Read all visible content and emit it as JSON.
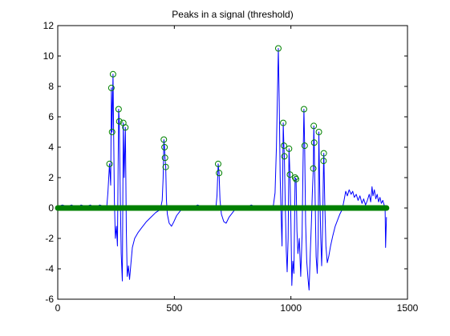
{
  "chart_data": {
    "type": "line",
    "title": "Peaks in a signal (threshold)",
    "xlabel": "",
    "ylabel": "",
    "xlim": [
      0,
      1500
    ],
    "ylim": [
      -6,
      12
    ],
    "xticks": [
      "0",
      "500",
      "1000",
      "1500"
    ],
    "yticks": [
      "-6",
      "-4",
      "-2",
      "0",
      "2",
      "4",
      "6",
      "8",
      "10",
      "12"
    ],
    "grid": false,
    "legend": "none",
    "colors": {
      "signal": "#0000ff",
      "peaks": "#008000",
      "baseline": "#008000"
    },
    "baseline": {
      "y": 0,
      "x": [
        0,
        1410
      ]
    },
    "peaks": [
      {
        "x": 222,
        "y": 2.9
      },
      {
        "x": 230,
        "y": 7.9
      },
      {
        "x": 233,
        "y": 5.0
      },
      {
        "x": 237,
        "y": 8.8
      },
      {
        "x": 261,
        "y": 6.5
      },
      {
        "x": 264,
        "y": 5.7
      },
      {
        "x": 281,
        "y": 5.6
      },
      {
        "x": 290,
        "y": 5.3
      },
      {
        "x": 455,
        "y": 4.5
      },
      {
        "x": 458,
        "y": 4.0
      },
      {
        "x": 460,
        "y": 3.3
      },
      {
        "x": 463,
        "y": 2.7
      },
      {
        "x": 688,
        "y": 2.9
      },
      {
        "x": 692,
        "y": 2.3
      },
      {
        "x": 946,
        "y": 10.5
      },
      {
        "x": 967,
        "y": 5.6
      },
      {
        "x": 970,
        "y": 4.1
      },
      {
        "x": 972,
        "y": 3.4
      },
      {
        "x": 992,
        "y": 3.9
      },
      {
        "x": 996,
        "y": 2.2
      },
      {
        "x": 1018,
        "y": 2.0
      },
      {
        "x": 1022,
        "y": 1.9
      },
      {
        "x": 1056,
        "y": 6.5
      },
      {
        "x": 1059,
        "y": 4.1
      },
      {
        "x": 1098,
        "y": 5.4
      },
      {
        "x": 1100,
        "y": 4.3
      },
      {
        "x": 1096,
        "y": 2.6
      },
      {
        "x": 1120,
        "y": 5.0
      },
      {
        "x": 1141,
        "y": 3.6
      },
      {
        "x": 1140,
        "y": 3.1
      }
    ],
    "signal": [
      [
        0,
        0.1
      ],
      [
        20,
        0.2
      ],
      [
        40,
        0.1
      ],
      [
        60,
        0.2
      ],
      [
        80,
        0.0
      ],
      [
        100,
        0.2
      ],
      [
        120,
        0.1
      ],
      [
        140,
        0.2
      ],
      [
        160,
        0.0
      ],
      [
        180,
        0.2
      ],
      [
        200,
        0.1
      ],
      [
        210,
        0.0
      ],
      [
        215,
        1.0
      ],
      [
        222,
        2.9
      ],
      [
        227,
        1.5
      ],
      [
        230,
        7.9
      ],
      [
        233,
        5.0
      ],
      [
        237,
        8.8
      ],
      [
        243,
        0.5
      ],
      [
        247,
        -2.0
      ],
      [
        252,
        -1.2
      ],
      [
        256,
        -2.5
      ],
      [
        261,
        6.5
      ],
      [
        264,
        5.7
      ],
      [
        268,
        1.0
      ],
      [
        272,
        -3.0
      ],
      [
        277,
        -4.8
      ],
      [
        281,
        5.6
      ],
      [
        285,
        2.0
      ],
      [
        290,
        5.3
      ],
      [
        294,
        -1.5
      ],
      [
        298,
        -4.5
      ],
      [
        303,
        -3.8
      ],
      [
        308,
        -4.7
      ],
      [
        314,
        -3.6
      ],
      [
        320,
        -2.6
      ],
      [
        330,
        -2.0
      ],
      [
        345,
        -1.6
      ],
      [
        360,
        -1.3
      ],
      [
        380,
        -0.9
      ],
      [
        400,
        -0.6
      ],
      [
        420,
        -0.3
      ],
      [
        440,
        -0.1
      ],
      [
        448,
        0.5
      ],
      [
        452,
        2.0
      ],
      [
        455,
        4.5
      ],
      [
        458,
        4.0
      ],
      [
        460,
        3.3
      ],
      [
        463,
        2.7
      ],
      [
        466,
        0.5
      ],
      [
        470,
        -0.4
      ],
      [
        478,
        -1.0
      ],
      [
        488,
        -1.2
      ],
      [
        498,
        -0.9
      ],
      [
        510,
        -0.5
      ],
      [
        525,
        -0.2
      ],
      [
        545,
        0.1
      ],
      [
        570,
        0.0
      ],
      [
        600,
        0.2
      ],
      [
        630,
        0.0
      ],
      [
        660,
        0.1
      ],
      [
        678,
        0.0
      ],
      [
        683,
        0.8
      ],
      [
        688,
        2.9
      ],
      [
        692,
        2.3
      ],
      [
        696,
        0.5
      ],
      [
        702,
        -0.4
      ],
      [
        712,
        -0.9
      ],
      [
        722,
        -1.0
      ],
      [
        735,
        -0.6
      ],
      [
        750,
        -0.3
      ],
      [
        770,
        0.1
      ],
      [
        800,
        0.0
      ],
      [
        830,
        0.2
      ],
      [
        860,
        0.0
      ],
      [
        890,
        0.1
      ],
      [
        915,
        0.0
      ],
      [
        925,
        0.2
      ],
      [
        932,
        1.0
      ],
      [
        938,
        4.0
      ],
      [
        943,
        8.0
      ],
      [
        946,
        10.5
      ],
      [
        950,
        7.0
      ],
      [
        954,
        2.0
      ],
      [
        958,
        -0.5
      ],
      [
        962,
        -2.5
      ],
      [
        967,
        5.6
      ],
      [
        970,
        4.1
      ],
      [
        972,
        3.4
      ],
      [
        976,
        0.0
      ],
      [
        980,
        -2.8
      ],
      [
        984,
        -4.2
      ],
      [
        988,
        -2.0
      ],
      [
        992,
        3.9
      ],
      [
        996,
        2.2
      ],
      [
        1000,
        -1.0
      ],
      [
        1004,
        -5.1
      ],
      [
        1008,
        -3.5
      ],
      [
        1013,
        -4.3
      ],
      [
        1018,
        2.0
      ],
      [
        1022,
        1.9
      ],
      [
        1026,
        -1.5
      ],
      [
        1030,
        -3.0
      ],
      [
        1036,
        -2.0
      ],
      [
        1042,
        -4.5
      ],
      [
        1048,
        -1.8
      ],
      [
        1052,
        3.0
      ],
      [
        1056,
        6.5
      ],
      [
        1059,
        4.1
      ],
      [
        1063,
        -1.0
      ],
      [
        1068,
        -3.5
      ],
      [
        1073,
        -4.6
      ],
      [
        1078,
        -5.4
      ],
      [
        1083,
        -3.0
      ],
      [
        1088,
        -1.0
      ],
      [
        1092,
        1.0
      ],
      [
        1096,
        2.6
      ],
      [
        1098,
        5.4
      ],
      [
        1100,
        4.3
      ],
      [
        1104,
        0.5
      ],
      [
        1108,
        -3.2
      ],
      [
        1113,
        -4.3
      ],
      [
        1117,
        -2.0
      ],
      [
        1120,
        5.0
      ],
      [
        1124,
        1.0
      ],
      [
        1128,
        -2.0
      ],
      [
        1132,
        -3.8
      ],
      [
        1136,
        -1.2
      ],
      [
        1140,
        3.1
      ],
      [
        1141,
        3.6
      ],
      [
        1145,
        0.5
      ],
      [
        1150,
        -2.5
      ],
      [
        1156,
        -3.6
      ],
      [
        1162,
        -3.2
      ],
      [
        1170,
        -2.5
      ],
      [
        1180,
        -1.8
      ],
      [
        1190,
        -1.2
      ],
      [
        1200,
        -0.8
      ],
      [
        1210,
        -0.4
      ],
      [
        1220,
        -0.1
      ],
      [
        1228,
        0.5
      ],
      [
        1235,
        1.1
      ],
      [
        1242,
        0.8
      ],
      [
        1250,
        1.2
      ],
      [
        1258,
        0.9
      ],
      [
        1265,
        1.1
      ],
      [
        1272,
        0.7
      ],
      [
        1280,
        0.9
      ],
      [
        1288,
        0.5
      ],
      [
        1296,
        0.8
      ],
      [
        1305,
        0.3
      ],
      [
        1312,
        0.6
      ],
      [
        1320,
        0.2
      ],
      [
        1328,
        0.5
      ],
      [
        1336,
        0.9
      ],
      [
        1342,
        0.4
      ],
      [
        1348,
        1.4
      ],
      [
        1352,
        0.8
      ],
      [
        1358,
        1.2
      ],
      [
        1364,
        0.6
      ],
      [
        1370,
        0.9
      ],
      [
        1376,
        0.4
      ],
      [
        1382,
        0.7
      ],
      [
        1388,
        0.3
      ],
      [
        1394,
        0.5
      ],
      [
        1400,
        0.2
      ],
      [
        1404,
        0.0
      ],
      [
        1406,
        -2.6
      ],
      [
        1408,
        -1.5
      ],
      [
        1410,
        -0.6
      ]
    ]
  }
}
